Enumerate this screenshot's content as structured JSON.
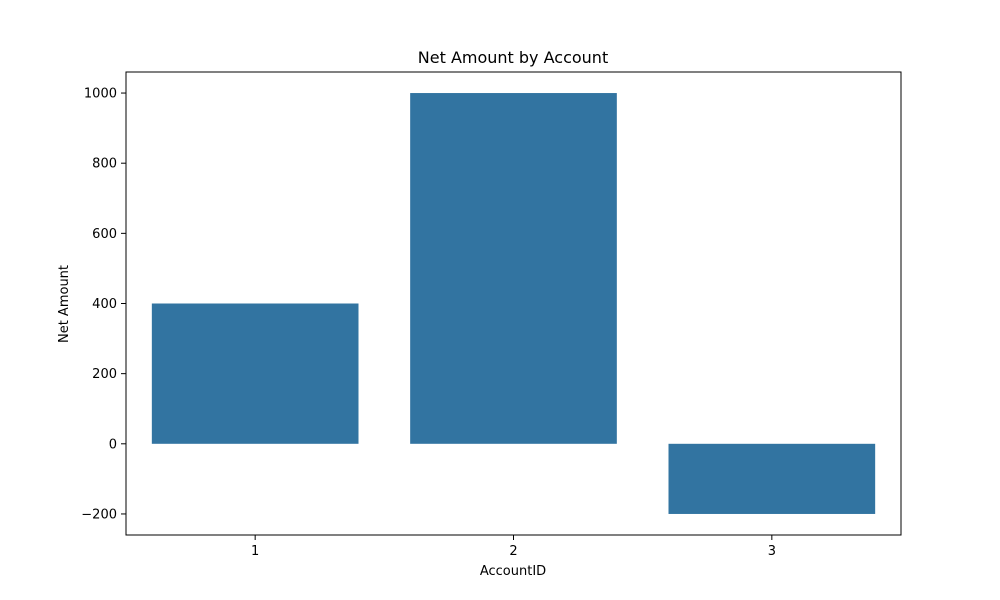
{
  "chart_data": {
    "type": "bar",
    "title": "Net Amount by Account",
    "xlabel": "AccountID",
    "ylabel": "Net Amount",
    "categories": [
      "1",
      "2",
      "3"
    ],
    "values": [
      400,
      1000,
      -200
    ],
    "ylim": [
      -260,
      1060
    ],
    "yticks": [
      -200,
      0,
      200,
      400,
      600,
      800,
      1000
    ],
    "ytick_labels": [
      "−200",
      "0",
      "200",
      "400",
      "600",
      "800",
      "1000"
    ],
    "bar_color": "#3274a1",
    "grid": false,
    "legend": "none"
  }
}
